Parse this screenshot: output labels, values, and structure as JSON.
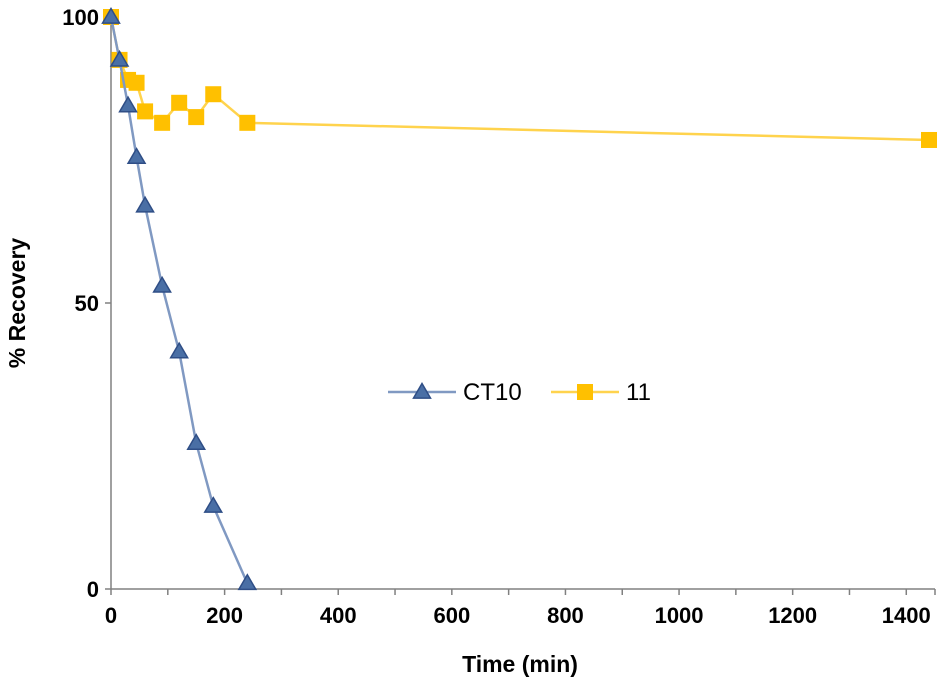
{
  "chart_data": {
    "type": "line",
    "title": "",
    "xlabel": "Time (min)",
    "ylabel": "% Recovery",
    "xlim": [
      0,
      1440
    ],
    "ylim": [
      0,
      100
    ],
    "x_ticks": [
      0,
      200,
      400,
      600,
      800,
      1000,
      1200,
      1400
    ],
    "y_ticks": [
      0,
      50,
      100
    ],
    "legend_position": "center",
    "grid": false,
    "series": [
      {
        "name": "CT10",
        "color": "#4A6FA5",
        "line_color": "#8099C2",
        "marker": "triangle",
        "x": [
          0,
          15,
          30,
          45,
          60,
          90,
          120,
          150,
          180,
          240
        ],
        "y": [
          100,
          92.5,
          84.5,
          75.5,
          67,
          53,
          41.5,
          25.5,
          14.5,
          1
        ]
      },
      {
        "name": "11",
        "color": "#FFC000",
        "line_color": "#FFD34D",
        "marker": "square",
        "x": [
          0,
          15,
          30,
          45,
          60,
          90,
          120,
          150,
          180,
          240,
          1440
        ],
        "y": [
          100,
          92.5,
          89,
          88.5,
          83.5,
          81.5,
          85,
          82.5,
          86.5,
          81.5,
          78.5
        ]
      }
    ]
  }
}
